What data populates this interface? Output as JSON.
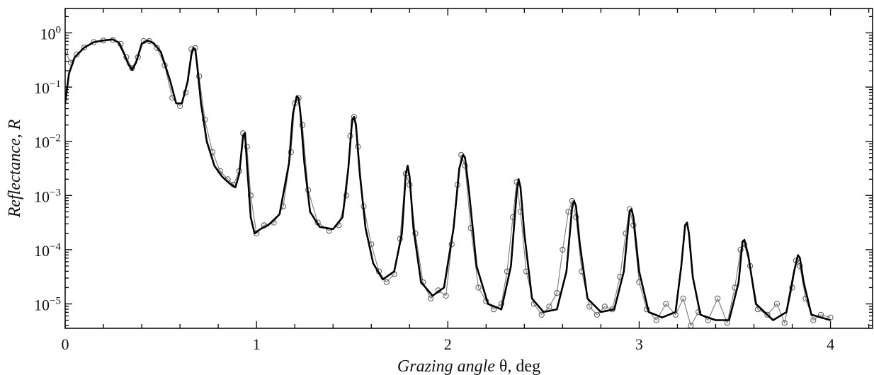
{
  "chart_data": {
    "type": "line",
    "xlabel": {
      "italic": "Grazing angle",
      "symbol": " θ",
      "unit": ", deg"
    },
    "ylabel": {
      "italic_a": "Reflectance",
      "plain": ", ",
      "italic_b": "R"
    },
    "x_ticks": [
      "0",
      "1",
      "2",
      "3",
      "4"
    ],
    "y_ticks": [
      {
        "base": "10",
        "exp": "0"
      },
      {
        "base": "10",
        "exp": "−1"
      },
      {
        "base": "10",
        "exp": "−2"
      },
      {
        "base": "10",
        "exp": "−3"
      },
      {
        "base": "10",
        "exp": "−4"
      },
      {
        "base": "10",
        "exp": "−5"
      }
    ],
    "x_range": [
      0,
      4.22
    ],
    "y_range_log10": [
      -5.45,
      0.45
    ],
    "y_scale": "log",
    "grid": false,
    "legend": "none",
    "series": [
      {
        "style": "thick black line (calculated)",
        "color": "#000000",
        "x": [
          0.0,
          0.02,
          0.05,
          0.1,
          0.15,
          0.2,
          0.25,
          0.28,
          0.31,
          0.33,
          0.35,
          0.37,
          0.4,
          0.43,
          0.46,
          0.5,
          0.55,
          0.58,
          0.61,
          0.64,
          0.66,
          0.67,
          0.68,
          0.69,
          0.71,
          0.74,
          0.78,
          0.82,
          0.86,
          0.89,
          0.91,
          0.93,
          0.94,
          0.95,
          0.97,
          0.99,
          1.02,
          1.06,
          1.12,
          1.17,
          1.19,
          1.21,
          1.22,
          1.23,
          1.25,
          1.28,
          1.33,
          1.4,
          1.45,
          1.48,
          1.5,
          1.51,
          1.52,
          1.54,
          1.57,
          1.61,
          1.66,
          1.72,
          1.76,
          1.78,
          1.79,
          1.8,
          1.82,
          1.86,
          1.92,
          1.98,
          2.03,
          2.06,
          2.08,
          2.09,
          2.11,
          2.15,
          2.21,
          2.28,
          2.33,
          2.36,
          2.37,
          2.38,
          2.4,
          2.44,
          2.5,
          2.57,
          2.62,
          2.65,
          2.66,
          2.67,
          2.69,
          2.73,
          2.8,
          2.87,
          2.92,
          2.95,
          2.96,
          2.97,
          3.0,
          3.05,
          3.12,
          3.19,
          3.22,
          3.24,
          3.25,
          3.26,
          3.28,
          3.32,
          3.4,
          3.47,
          3.52,
          3.54,
          3.55,
          3.57,
          3.61,
          3.7,
          3.77,
          3.81,
          3.83,
          3.84,
          3.86,
          3.9,
          4.0
        ],
        "log10_y": [
          -1.3,
          -0.75,
          -0.45,
          -0.27,
          -0.17,
          -0.14,
          -0.12,
          -0.18,
          -0.4,
          -0.58,
          -0.68,
          -0.55,
          -0.2,
          -0.14,
          -0.18,
          -0.35,
          -0.9,
          -1.3,
          -1.3,
          -0.9,
          -0.4,
          -0.28,
          -0.3,
          -0.6,
          -1.3,
          -2.0,
          -2.45,
          -2.65,
          -2.78,
          -2.85,
          -2.6,
          -1.9,
          -1.85,
          -2.4,
          -3.4,
          -3.7,
          -3.62,
          -3.55,
          -3.35,
          -2.4,
          -1.5,
          -1.17,
          -1.2,
          -1.5,
          -2.4,
          -3.3,
          -3.58,
          -3.62,
          -3.4,
          -2.5,
          -1.6,
          -1.55,
          -1.7,
          -2.6,
          -3.6,
          -4.25,
          -4.55,
          -4.4,
          -3.7,
          -2.6,
          -2.45,
          -2.65,
          -3.6,
          -4.6,
          -4.85,
          -4.7,
          -3.6,
          -2.5,
          -2.25,
          -2.3,
          -2.9,
          -4.3,
          -5.0,
          -5.1,
          -4.3,
          -2.95,
          -2.7,
          -2.85,
          -3.7,
          -4.9,
          -5.15,
          -5.1,
          -4.4,
          -3.2,
          -3.1,
          -3.2,
          -3.9,
          -4.9,
          -5.15,
          -5.1,
          -4.4,
          -3.3,
          -3.25,
          -3.4,
          -4.4,
          -5.15,
          -5.25,
          -5.15,
          -4.3,
          -3.55,
          -3.5,
          -3.7,
          -4.5,
          -5.2,
          -5.3,
          -5.3,
          -4.6,
          -3.85,
          -3.82,
          -4.1,
          -5.0,
          -5.3,
          -5.15,
          -4.4,
          -4.1,
          -4.15,
          -4.6,
          -5.2,
          -5.3
        ]
      },
      {
        "style": "thin grey line with open circle markers (measured)",
        "color": "#7a7a7a",
        "marker": "open-circle",
        "x": [
          0.0,
          0.03,
          0.06,
          0.1,
          0.15,
          0.2,
          0.25,
          0.29,
          0.32,
          0.35,
          0.38,
          0.41,
          0.44,
          0.48,
          0.52,
          0.56,
          0.6,
          0.63,
          0.66,
          0.68,
          0.7,
          0.73,
          0.77,
          0.81,
          0.85,
          0.88,
          0.91,
          0.93,
          0.95,
          0.97,
          1.0,
          1.04,
          1.09,
          1.14,
          1.18,
          1.2,
          1.22,
          1.24,
          1.27,
          1.32,
          1.38,
          1.43,
          1.47,
          1.49,
          1.51,
          1.53,
          1.56,
          1.6,
          1.64,
          1.68,
          1.72,
          1.75,
          1.78,
          1.8,
          1.83,
          1.87,
          1.91,
          1.95,
          1.99,
          2.02,
          2.05,
          2.07,
          2.09,
          2.12,
          2.16,
          2.2,
          2.24,
          2.28,
          2.31,
          2.34,
          2.36,
          2.38,
          2.41,
          2.45,
          2.49,
          2.53,
          2.57,
          2.6,
          2.63,
          2.65,
          2.67,
          2.7,
          2.74,
          2.78,
          2.82,
          2.86,
          2.9,
          2.93,
          2.95,
          2.97,
          3.0,
          3.04,
          3.09,
          3.14,
          3.19,
          3.23,
          3.27,
          3.31,
          3.36,
          3.41,
          3.46,
          3.5,
          3.53,
          3.55,
          3.58,
          3.62,
          3.67,
          3.72,
          3.76,
          3.8,
          3.82,
          3.84,
          3.87,
          3.91,
          3.95,
          4.0
        ],
        "log10_y": [
          -0.35,
          -0.55,
          -0.4,
          -0.27,
          -0.17,
          -0.14,
          -0.13,
          -0.2,
          -0.45,
          -0.65,
          -0.45,
          -0.15,
          -0.15,
          -0.28,
          -0.6,
          -1.2,
          -1.35,
          -1.1,
          -0.3,
          -0.28,
          -0.8,
          -1.6,
          -2.2,
          -2.55,
          -2.7,
          -2.8,
          -2.55,
          -1.85,
          -2.1,
          -3.0,
          -3.7,
          -3.55,
          -3.5,
          -3.2,
          -2.2,
          -1.3,
          -1.2,
          -1.7,
          -2.9,
          -3.5,
          -3.65,
          -3.55,
          -3.0,
          -1.9,
          -1.55,
          -2.1,
          -3.2,
          -3.9,
          -4.4,
          -4.6,
          -4.45,
          -3.8,
          -2.6,
          -2.8,
          -3.7,
          -4.6,
          -4.9,
          -4.75,
          -4.85,
          -3.9,
          -2.8,
          -2.25,
          -2.45,
          -3.6,
          -4.7,
          -4.95,
          -5.1,
          -5.0,
          -4.4,
          -3.4,
          -2.75,
          -3.3,
          -4.4,
          -5.0,
          -5.2,
          -5.05,
          -4.8,
          -4.0,
          -3.3,
          -3.1,
          -3.4,
          -4.4,
          -5.05,
          -5.2,
          -5.05,
          -5.1,
          -4.5,
          -3.7,
          -3.25,
          -3.55,
          -4.6,
          -5.1,
          -5.3,
          -5.0,
          -5.2,
          -4.9,
          -5.4,
          -5.15,
          -5.3,
          -4.9,
          -5.35,
          -4.7,
          -4.0,
          -3.9,
          -4.3,
          -5.1,
          -5.2,
          -5.0,
          -5.35,
          -4.7,
          -4.2,
          -4.3,
          -4.9,
          -5.3,
          -5.2,
          -5.25
        ]
      }
    ]
  }
}
